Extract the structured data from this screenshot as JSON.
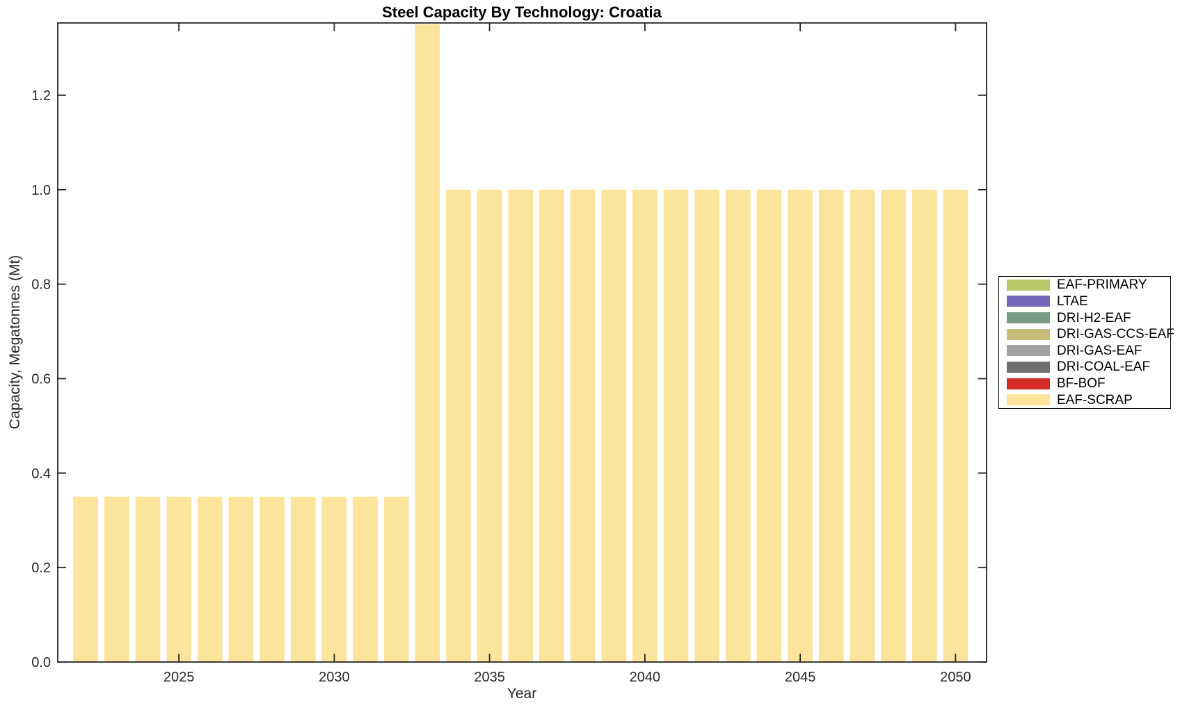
{
  "chart_data": {
    "type": "bar",
    "title": "Steel Capacity By Technology: Croatia",
    "xlabel": "Year",
    "ylabel": "Capacity, Megatonnes (Mt)",
    "series_name": "EAF-SCRAP",
    "bar_color": "#fde49c",
    "x": [
      2022,
      2023,
      2024,
      2025,
      2026,
      2027,
      2028,
      2029,
      2030,
      2031,
      2032,
      2033,
      2034,
      2035,
      2036,
      2037,
      2038,
      2039,
      2040,
      2041,
      2042,
      2043,
      2044,
      2045,
      2046,
      2047,
      2048,
      2049,
      2050
    ],
    "values": [
      0.35,
      0.35,
      0.35,
      0.35,
      0.35,
      0.35,
      0.35,
      0.35,
      0.35,
      0.35,
      0.35,
      1.35,
      1.0,
      1.0,
      1.0,
      1.0,
      1.0,
      1.0,
      1.0,
      1.0,
      1.0,
      1.0,
      1.0,
      1.0,
      1.0,
      1.0,
      1.0,
      1.0,
      1.0
    ],
    "xlim": [
      2021.1,
      2051.0
    ],
    "ylim": [
      0,
      1.353
    ],
    "xticks": [
      2025,
      2030,
      2035,
      2040,
      2045,
      2050
    ],
    "xtick_labels": [
      "2025",
      "2030",
      "2035",
      "2040",
      "2045",
      "2050"
    ],
    "yticks": [
      0.0,
      0.2,
      0.4,
      0.6,
      0.8,
      1.0,
      1.2
    ],
    "ytick_labels": [
      "0.0",
      "0.2",
      "0.4",
      "0.6",
      "0.8",
      "1.0",
      "1.2"
    ],
    "grid": false,
    "legend_position": "outside-right",
    "legend_entries": [
      {
        "label": "EAF-PRIMARY",
        "color": "#b8c86b"
      },
      {
        "label": "LTAE",
        "color": "#7468bd"
      },
      {
        "label": "DRI-H2-EAF",
        "color": "#7a9c82"
      },
      {
        "label": "DRI-GAS-CCS-EAF",
        "color": "#c6bd7b"
      },
      {
        "label": "DRI-GAS-EAF",
        "color": "#a3a3a3"
      },
      {
        "label": "DRI-COAL-EAF",
        "color": "#6e6e6e"
      },
      {
        "label": "BF-BOF",
        "color": "#d32b26"
      },
      {
        "label": "EAF-SCRAP",
        "color": "#fde49c"
      }
    ],
    "frame_color": "#262626",
    "note": "Bar for 2033 reaches the top of the axes (value 1.35)"
  }
}
